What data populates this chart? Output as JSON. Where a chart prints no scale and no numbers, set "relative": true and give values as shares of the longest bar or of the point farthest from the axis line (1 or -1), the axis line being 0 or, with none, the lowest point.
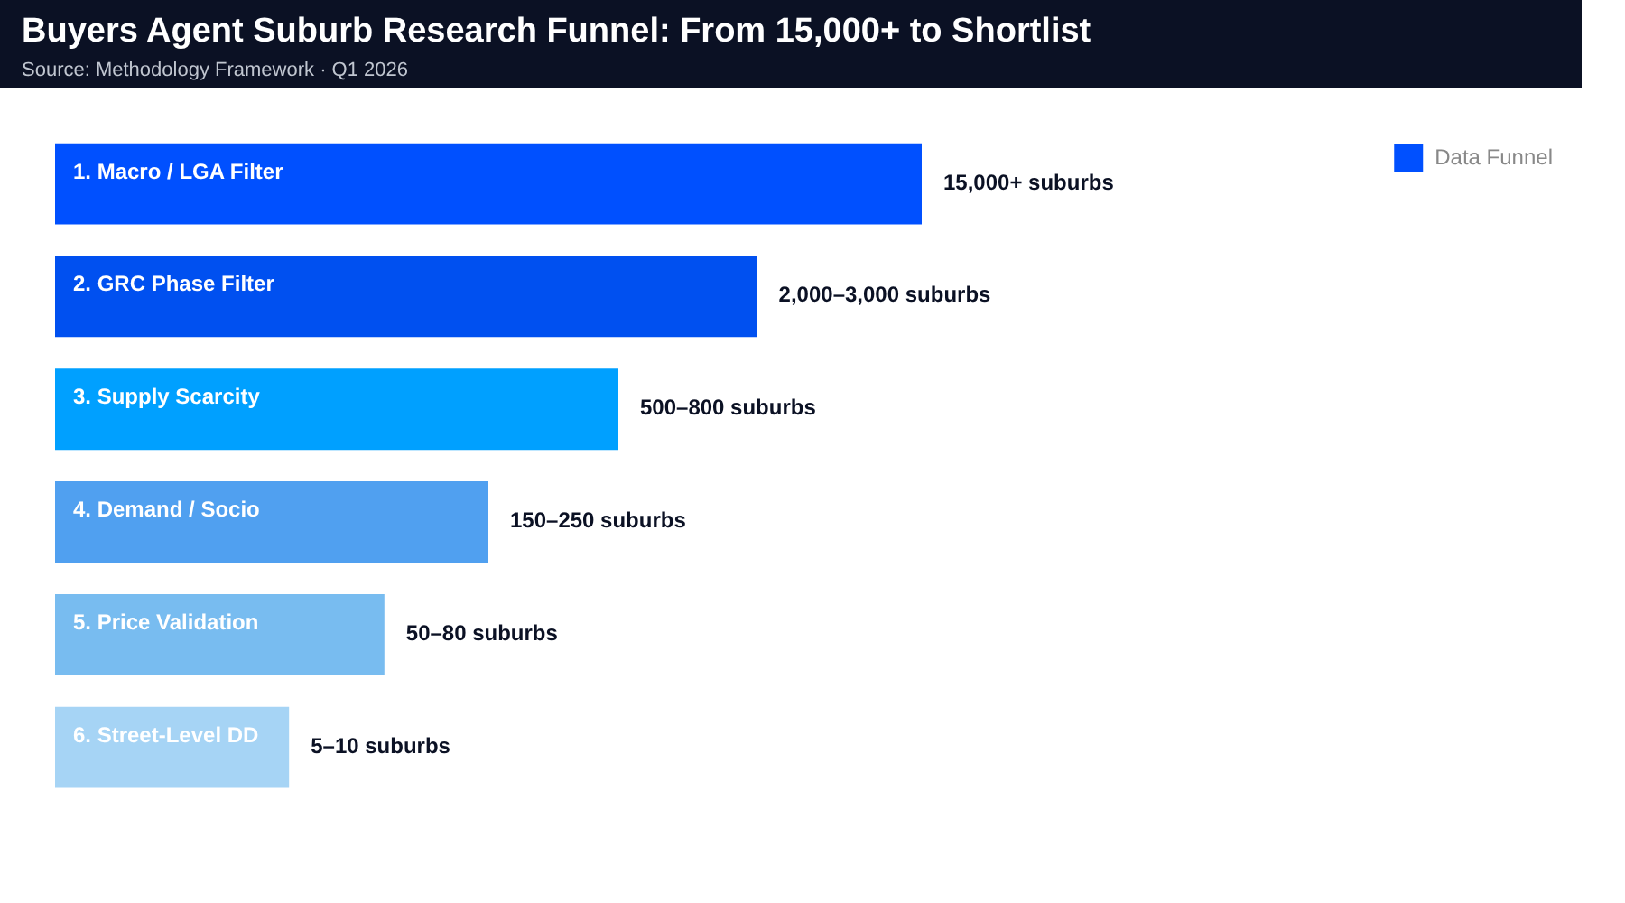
{
  "chart_data": {
    "type": "bar",
    "orientation": "horizontal",
    "relative": true,
    "title": "Buyers Agent Suburb Research Funnel: From 15,000+ to Shortlist",
    "subtitle": "Source: Methodology Framework · Q1 2026",
    "categories": [
      "1. Macro / LGA Filter",
      "2. GRC Phase Filter",
      "3. Supply Scarcity",
      "4. Demand / Socio",
      "5. Price Validation",
      "6. Street-Level DD"
    ],
    "series": [
      {
        "name": "Data Funnel",
        "values": [
          1,
          0.81,
          0.65,
          0.5,
          0.38,
          0.27
        ]
      }
    ],
    "colors": [
      "#0050ff",
      "#0050f0",
      "#00a0ff",
      "#50a0f0",
      "#78bcf0",
      "#a6d4f5"
    ],
    "value_labels": [
      "15,000+ suburbs",
      "2,000–3,000 suburbs",
      "500–800 suburbs",
      "150–250 suburbs",
      "50–80 suburbs",
      "5–10 suburbs"
    ],
    "legend": "top right",
    "grid": false
  }
}
